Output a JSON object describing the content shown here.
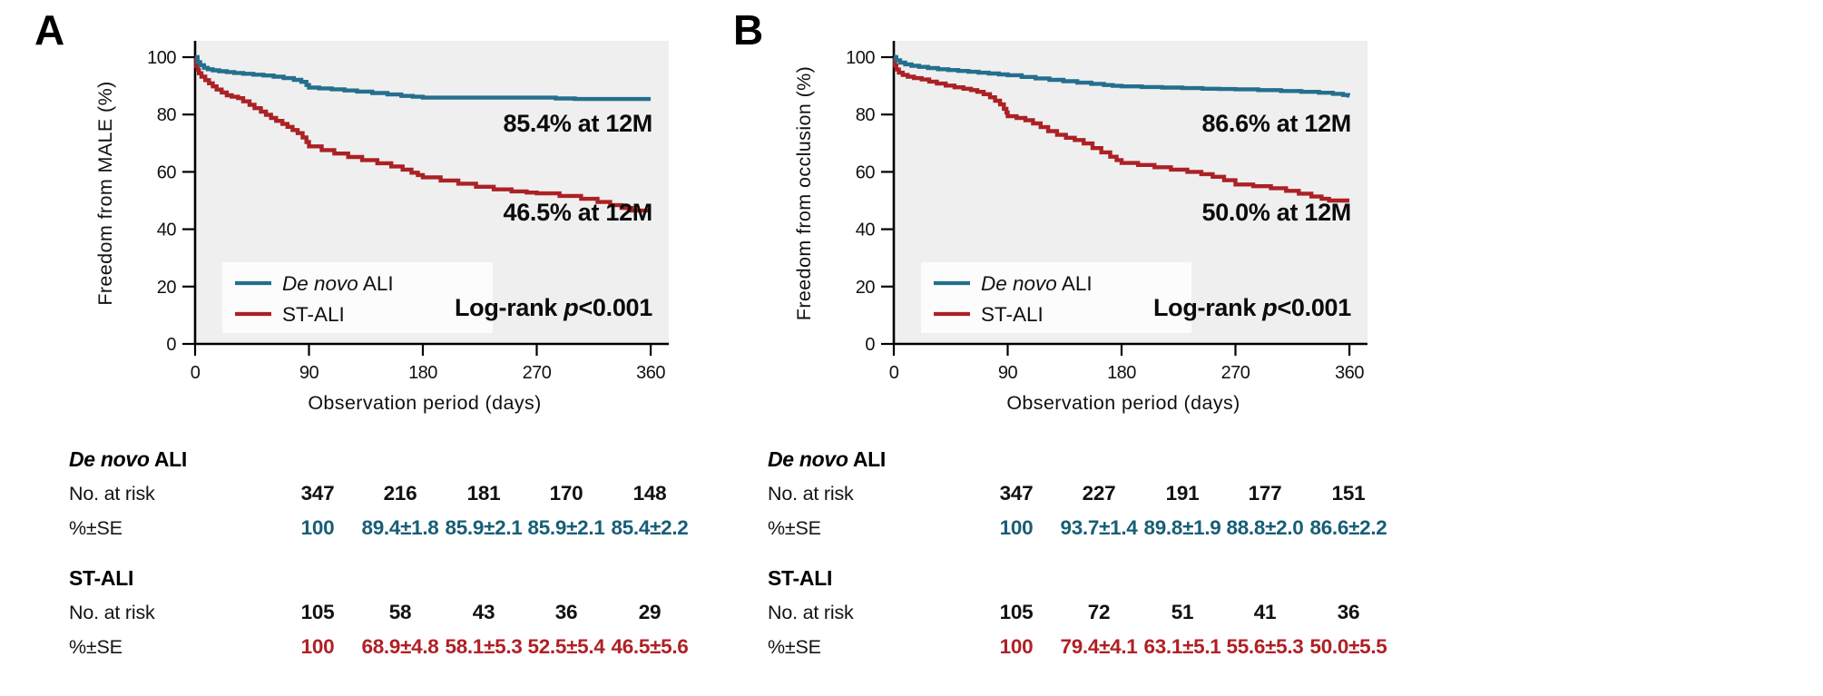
{
  "figure": {
    "panels": [
      {
        "letter": "A",
        "ylabel": "Freedom from MALE (%)",
        "xlabel": "Observation period (days)",
        "legend": [
          {
            "em": "De novo",
            "rest": " ALI"
          },
          {
            "em": "",
            "rest": "ST-ALI"
          }
        ],
        "anno_top": "85.4% at 12M",
        "anno_bottom": "46.5% at 12M",
        "logrank": {
          "pre": "Log-rank ",
          "em": "p",
          "post": "<0.001"
        },
        "table": {
          "groups": [
            {
              "em": "De novo",
              "rest": " ALI",
              "risk_label": "No. at risk",
              "se_label": "%±SE",
              "risk": [
                "347",
                "216",
                "181",
                "170",
                "148"
              ],
              "se": [
                "100",
                "89.4±1.8",
                "85.9±2.1",
                "85.9±2.1",
                "85.4±2.2"
              ],
              "se_style": "color:#175E76"
            },
            {
              "em": "",
              "rest": "ST-ALI",
              "risk_label": "No. at risk",
              "se_label": "%±SE",
              "risk": [
                "105",
                "58",
                "43",
                "36",
                "29"
              ],
              "se": [
                "100",
                "68.9±4.8",
                "58.1±5.3",
                "52.5±5.4",
                "46.5±5.6"
              ],
              "se_style": "color:#B02025"
            }
          ]
        }
      },
      {
        "letter": "B",
        "ylabel": "Freedom from occlusion (%)",
        "xlabel": "Observation period (days)",
        "legend": [
          {
            "em": "De novo",
            "rest": " ALI"
          },
          {
            "em": "",
            "rest": "ST-ALI"
          }
        ],
        "anno_top": "86.6% at 12M",
        "anno_bottom": "50.0% at 12M",
        "logrank": {
          "pre": "Log-rank ",
          "em": "p",
          "post": "<0.001"
        },
        "table": {
          "groups": [
            {
              "em": "De novo",
              "rest": " ALI",
              "risk_label": "No. at risk",
              "se_label": "%±SE",
              "risk": [
                "347",
                "227",
                "191",
                "177",
                "151"
              ],
              "se": [
                "100",
                "93.7±1.4",
                "89.8±1.9",
                "88.8±2.0",
                "86.6±2.2"
              ],
              "se_style": "color:#175E76"
            },
            {
              "em": "",
              "rest": "ST-ALI",
              "risk_label": "No. at risk",
              "se_label": "%±SE",
              "risk": [
                "105",
                "72",
                "51",
                "41",
                "36"
              ],
              "se": [
                "100",
                "79.4±4.1",
                "63.1±5.1",
                "55.6±5.3",
                "50.0±5.5"
              ],
              "se_style": "color:#B02025"
            }
          ]
        }
      }
    ]
  },
  "chart_data": [
    {
      "type": "line",
      "subtype": "kaplan_meier_step",
      "panel": "A",
      "title": "Freedom from MALE",
      "xlabel": "Observation period (days)",
      "ylabel": "Freedom from MALE (%)",
      "xlim": [
        0,
        360
      ],
      "ylim": [
        0,
        100
      ],
      "xticks": [
        0,
        90,
        180,
        270,
        360
      ],
      "yticks": [
        0,
        20,
        40,
        60,
        80,
        100
      ],
      "grid": false,
      "legend_position": "lower-left",
      "plot_bg": "#EFEFF0",
      "annotations": [
        "85.4% at 12M",
        "46.5% at 12M",
        "Log-rank p<0.001"
      ],
      "series": [
        {
          "name": "De novo ALI",
          "color": "#246F8D",
          "timepoints_days": [
            0,
            90,
            180,
            270,
            360
          ],
          "n_at_risk": [
            347,
            216,
            181,
            170,
            148
          ],
          "percent_se": [
            "100",
            "89.4±1.8",
            "85.9±2.1",
            "85.9±2.1",
            "85.4±2.2"
          ],
          "steps": [
            [
              0,
              100
            ],
            [
              2,
              98.3
            ],
            [
              4,
              97.2
            ],
            [
              7,
              96.3
            ],
            [
              10,
              95.8
            ],
            [
              14,
              95.4
            ],
            [
              19,
              95.1
            ],
            [
              25,
              94.8
            ],
            [
              31,
              94.5
            ],
            [
              38,
              94.2
            ],
            [
              46,
              93.9
            ],
            [
              54,
              93.6
            ],
            [
              62,
              93.2
            ],
            [
              70,
              92.7
            ],
            [
              78,
              92.1
            ],
            [
              84,
              91.4
            ],
            [
              88,
              90.3
            ],
            [
              90,
              89.4
            ],
            [
              98,
              89.1
            ],
            [
              108,
              88.8
            ],
            [
              118,
              88.4
            ],
            [
              128,
              88.0
            ],
            [
              140,
              87.5
            ],
            [
              152,
              87.0
            ],
            [
              163,
              86.5
            ],
            [
              172,
              86.2
            ],
            [
              180,
              85.9
            ],
            [
              268,
              85.9
            ],
            [
              285,
              85.6
            ],
            [
              300,
              85.4
            ],
            [
              360,
              85.4
            ]
          ]
        },
        {
          "name": "ST-ALI",
          "color": "#AB2124",
          "timepoints_days": [
            0,
            90,
            180,
            270,
            360
          ],
          "n_at_risk": [
            105,
            58,
            43,
            36,
            29
          ],
          "percent_se": [
            "100",
            "68.9±4.8",
            "58.1±5.3",
            "52.5±5.4",
            "46.5±5.6"
          ],
          "steps": [
            [
              0,
              100
            ],
            [
              1,
              96.9
            ],
            [
              2,
              95.6
            ],
            [
              3,
              94.4
            ],
            [
              5,
              93.2
            ],
            [
              8,
              92.0
            ],
            [
              11,
              90.9
            ],
            [
              14,
              89.8
            ],
            [
              17,
              88.7
            ],
            [
              21,
              87.7
            ],
            [
              25,
              86.7
            ],
            [
              29,
              86.2
            ],
            [
              34,
              85.7
            ],
            [
              38,
              84.6
            ],
            [
              43,
              83.4
            ],
            [
              47,
              82.2
            ],
            [
              52,
              81.0
            ],
            [
              56,
              79.9
            ],
            [
              60,
              78.8
            ],
            [
              64,
              77.8
            ],
            [
              69,
              76.7
            ],
            [
              73,
              75.7
            ],
            [
              77,
              74.6
            ],
            [
              81,
              73.5
            ],
            [
              85,
              72.0
            ],
            [
              88,
              70.4
            ],
            [
              90,
              68.9
            ],
            [
              100,
              67.6
            ],
            [
              110,
              66.4
            ],
            [
              121,
              65.2
            ],
            [
              132,
              64.1
            ],
            [
              144,
              63.0
            ],
            [
              155,
              61.9
            ],
            [
              164,
              60.8
            ],
            [
              171,
              59.7
            ],
            [
              176,
              58.9
            ],
            [
              180,
              58.1
            ],
            [
              194,
              57.0
            ],
            [
              208,
              55.9
            ],
            [
              222,
              54.8
            ],
            [
              236,
              53.9
            ],
            [
              250,
              53.2
            ],
            [
              262,
              52.8
            ],
            [
              270,
              52.5
            ],
            [
              288,
              51.6
            ],
            [
              305,
              50.6
            ],
            [
              318,
              49.5
            ],
            [
              328,
              48.4
            ],
            [
              337,
              47.4
            ],
            [
              345,
              46.5
            ],
            [
              360,
              46.5
            ]
          ]
        }
      ]
    },
    {
      "type": "line",
      "subtype": "kaplan_meier_step",
      "panel": "B",
      "title": "Freedom from occlusion",
      "xlabel": "Observation period (days)",
      "ylabel": "Freedom from occlusion (%)",
      "xlim": [
        0,
        360
      ],
      "ylim": [
        0,
        100
      ],
      "xticks": [
        0,
        90,
        180,
        270,
        360
      ],
      "yticks": [
        0,
        20,
        40,
        60,
        80,
        100
      ],
      "grid": false,
      "legend_position": "lower-left",
      "plot_bg": "#EFEFF0",
      "annotations": [
        "86.6% at 12M",
        "50.0% at 12M",
        "Log-rank p<0.001"
      ],
      "series": [
        {
          "name": "De novo ALI",
          "color": "#246F8D",
          "timepoints_days": [
            0,
            90,
            180,
            270,
            360
          ],
          "n_at_risk": [
            347,
            227,
            191,
            177,
            151
          ],
          "percent_se": [
            "100",
            "93.7±1.4",
            "89.8±1.9",
            "88.8±2.0",
            "86.6±2.2"
          ],
          "steps": [
            [
              0,
              100
            ],
            [
              2,
              98.9
            ],
            [
              5,
              98.1
            ],
            [
              9,
              97.5
            ],
            [
              14,
              97.0
            ],
            [
              20,
              96.6
            ],
            [
              27,
              96.2
            ],
            [
              35,
              95.8
            ],
            [
              43,
              95.5
            ],
            [
              51,
              95.2
            ],
            [
              59,
              94.9
            ],
            [
              67,
              94.6
            ],
            [
              75,
              94.3
            ],
            [
              83,
              94.0
            ],
            [
              90,
              93.7
            ],
            [
              101,
              93.1
            ],
            [
              112,
              92.6
            ],
            [
              123,
              92.1
            ],
            [
              134,
              91.6
            ],
            [
              145,
              91.1
            ],
            [
              156,
              90.7
            ],
            [
              166,
              90.3
            ],
            [
              173,
              90.0
            ],
            [
              180,
              89.8
            ],
            [
              196,
              89.6
            ],
            [
              212,
              89.4
            ],
            [
              228,
              89.2
            ],
            [
              244,
              89.0
            ],
            [
              257,
              88.9
            ],
            [
              270,
              88.8
            ],
            [
              288,
              88.5
            ],
            [
              306,
              88.2
            ],
            [
              322,
              87.9
            ],
            [
              336,
              87.6
            ],
            [
              347,
              87.2
            ],
            [
              355,
              86.8
            ],
            [
              359,
              86.6
            ],
            [
              360,
              86.6
            ]
          ]
        },
        {
          "name": "ST-ALI",
          "color": "#AB2124",
          "timepoints_days": [
            0,
            90,
            180,
            270,
            360
          ],
          "n_at_risk": [
            105,
            72,
            51,
            41,
            36
          ],
          "percent_se": [
            "100",
            "79.4±4.1",
            "63.1±5.1",
            "55.6±5.3",
            "50.0±5.5"
          ],
          "steps": [
            [
              0,
              100
            ],
            [
              1,
              97.1
            ],
            [
              2,
              95.7
            ],
            [
              4,
              94.6
            ],
            [
              7,
              93.8
            ],
            [
              11,
              93.2
            ],
            [
              16,
              92.7
            ],
            [
              22,
              92.2
            ],
            [
              28,
              91.5
            ],
            [
              34,
              90.8
            ],
            [
              41,
              90.1
            ],
            [
              48,
              89.5
            ],
            [
              55,
              89.0
            ],
            [
              61,
              88.5
            ],
            [
              66,
              87.9
            ],
            [
              71,
              87.1
            ],
            [
              76,
              86.0
            ],
            [
              80,
              84.8
            ],
            [
              84,
              83.5
            ],
            [
              87,
              82.0
            ],
            [
              89,
              80.7
            ],
            [
              90,
              79.4
            ],
            [
              97,
              78.8
            ],
            [
              104,
              78.0
            ],
            [
              110,
              76.9
            ],
            [
              116,
              75.6
            ],
            [
              122,
              74.2
            ],
            [
              129,
              72.9
            ],
            [
              136,
              71.9
            ],
            [
              143,
              71.1
            ],
            [
              150,
              69.9
            ],
            [
              157,
              68.3
            ],
            [
              164,
              66.8
            ],
            [
              171,
              65.3
            ],
            [
              176,
              64.1
            ],
            [
              180,
              63.1
            ],
            [
              193,
              62.4
            ],
            [
              206,
              61.6
            ],
            [
              219,
              60.8
            ],
            [
              232,
              60.0
            ],
            [
              243,
              59.2
            ],
            [
              252,
              58.3
            ],
            [
              261,
              57.1
            ],
            [
              270,
              55.6
            ],
            [
              284,
              55.0
            ],
            [
              298,
              54.3
            ],
            [
              310,
              53.4
            ],
            [
              320,
              52.4
            ],
            [
              330,
              51.4
            ],
            [
              338,
              50.6
            ],
            [
              344,
              50.0
            ],
            [
              360,
              50.0
            ]
          ]
        }
      ]
    }
  ]
}
